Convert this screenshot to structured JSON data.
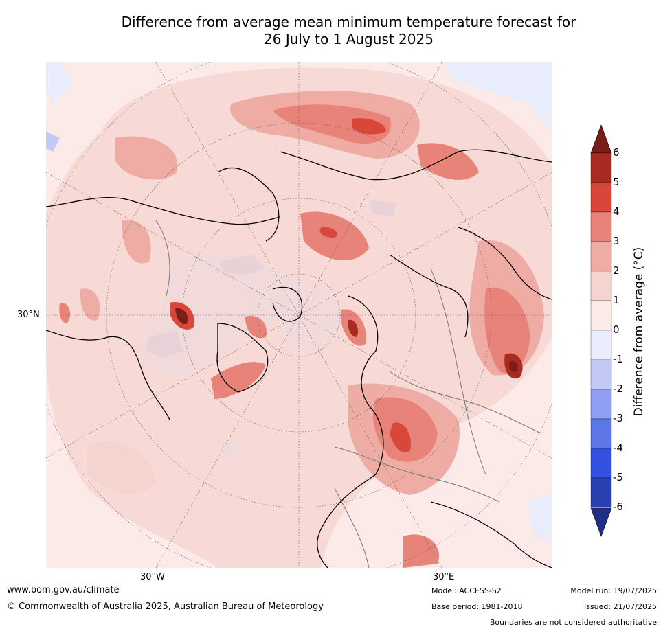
{
  "title": {
    "line1": "Difference from average mean minimum temperature forecast for",
    "line2": "26 July to 1 August 2025"
  },
  "map_labels": {
    "lat_30n": "30°N",
    "lon_30w": "30°W",
    "lon_30e": "30°E"
  },
  "colorbar": {
    "label": "Difference from average (°C)",
    "ticks": [
      "6",
      "5",
      "4",
      "3",
      "2",
      "1",
      "0",
      "-1",
      "-2",
      "-3",
      "-4",
      "-5",
      "-6"
    ],
    "colors_high_to_low": [
      "#7a1d16",
      "#a82b22",
      "#d9473b",
      "#e8837a",
      "#eeaca5",
      "#f5d3cf",
      "#fbeae7",
      "#e8ecfb",
      "#c2c9f4",
      "#8f9ef0",
      "#5b77e8",
      "#3350e0",
      "#2840b0",
      "#1e2f85"
    ]
  },
  "footer": {
    "website": "www.bom.gov.au/climate",
    "copyright": "© Commonwealth of Australia 2025, Australian Bureau of Meteorology",
    "model": "Model: ACCESS-S2",
    "base_period": "Base period: 1981-2018",
    "model_run": "Model run: 19/07/2025",
    "issued": "Issued: 21/07/2025",
    "disclaimer": "Boundaries are not considered authoritative"
  }
}
